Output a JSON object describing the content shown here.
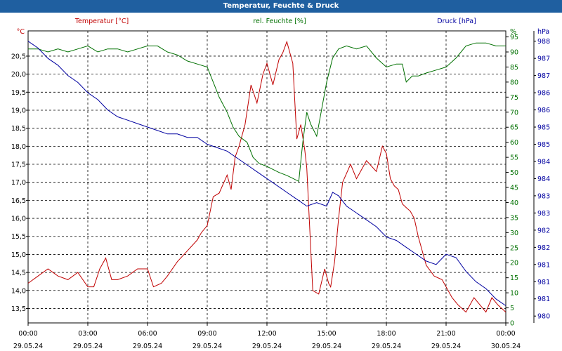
{
  "header": {
    "title": "Temperatur, Feuchte & Druck"
  },
  "chart_data": {
    "type": "line",
    "title": "Temperatur, Feuchte & Druck",
    "grid": true,
    "colors": {
      "temperature": "#c00000",
      "humidity": "#007000",
      "pressure": "#0000a0"
    },
    "x_ticks": [
      {
        "hours": 0,
        "time": "00:00",
        "date": "29.05.24"
      },
      {
        "hours": 3,
        "time": "03:00",
        "date": "29.05.24"
      },
      {
        "hours": 6,
        "time": "06:00",
        "date": "29.05.24"
      },
      {
        "hours": 9,
        "time": "09:00",
        "date": "29.05.24"
      },
      {
        "hours": 12,
        "time": "12:00",
        "date": "29.05.24"
      },
      {
        "hours": 15,
        "time": "15:00",
        "date": "29.05.24"
      },
      {
        "hours": 18,
        "time": "18:00",
        "date": "29.05.24"
      },
      {
        "hours": 21,
        "time": "21:00",
        "date": "29.05.24"
      },
      {
        "hours": 24,
        "time": "00:00",
        "date": "30.05.24"
      }
    ],
    "axes": {
      "temperature": {
        "label": "Temperatur [°C]",
        "unit": "°C",
        "range": [
          13.1,
          21.2
        ],
        "ticks": [
          "13,5",
          "14,0",
          "14,5",
          "15,0",
          "15,5",
          "16,0",
          "16,5",
          "17,0",
          "17,5",
          "18,0",
          "18,5",
          "19,0",
          "19,5",
          "20,0",
          "20,5"
        ],
        "tick_values": [
          13.5,
          14.0,
          14.5,
          15.0,
          15.5,
          16.0,
          16.5,
          17.0,
          17.5,
          18.0,
          18.5,
          19.0,
          19.5,
          20.0,
          20.5
        ]
      },
      "humidity": {
        "label": "rel. Feuchte [%]",
        "unit": "%",
        "range": [
          0,
          97
        ],
        "ticks": [
          "0",
          "5",
          "10",
          "15",
          "20",
          "25",
          "30",
          "35",
          "40",
          "45",
          "50",
          "55",
          "60",
          "65",
          "70",
          "75",
          "80",
          "85",
          "90",
          "95"
        ],
        "tick_values": [
          0,
          5,
          10,
          15,
          20,
          25,
          30,
          35,
          40,
          45,
          50,
          55,
          60,
          65,
          70,
          75,
          80,
          85,
          90,
          95
        ]
      },
      "pressure": {
        "label": "Druck [hPa]",
        "unit": "hPa",
        "range": [
          979.8,
          988.3
        ],
        "ticks": [
          "980",
          "981",
          "981",
          "981",
          "982",
          "982",
          "983",
          "983",
          "984",
          "984",
          "985",
          "985",
          "986",
          "986",
          "987",
          "987",
          "988",
          "988"
        ],
        "tick_values": [
          980.0,
          980.5,
          981.0,
          981.5,
          982.0,
          982.5,
          983.0,
          983.5,
          984.0,
          984.5,
          985.0,
          985.5,
          986.0,
          986.5,
          987.0,
          987.5,
          988.0,
          988.5
        ]
      }
    },
    "series": [
      {
        "name": "Temperatur [°C]",
        "key": "temperature",
        "x": [
          0,
          0.5,
          1,
          1.5,
          2,
          2.5,
          3,
          3.3,
          3.6,
          3.9,
          4.2,
          4.5,
          5.0,
          5.5,
          5.8,
          6.0,
          6.3,
          6.7,
          7.0,
          7.5,
          8.0,
          8.5,
          8.7,
          9.0,
          9.3,
          9.6,
          10.0,
          10.2,
          10.4,
          10.6,
          10.9,
          11.2,
          11.5,
          11.8,
          12.0,
          12.3,
          12.6,
          12.8,
          13.0,
          13.3,
          13.5,
          13.7,
          13.9,
          14.0,
          14.3,
          14.6,
          14.9,
          15.1,
          15.2,
          15.4,
          15.6,
          15.8,
          16.2,
          16.5,
          17.0,
          17.5,
          17.8,
          18.0,
          18.2,
          18.4,
          18.6,
          18.8,
          19.0,
          19.2,
          19.4,
          19.6,
          20.0,
          20.4,
          20.8,
          21.0,
          21.3,
          21.6,
          22.0,
          22.4,
          22.7,
          23.0,
          23.3,
          23.6,
          24.0
        ],
        "values": [
          14.2,
          14.4,
          14.6,
          14.4,
          14.3,
          14.5,
          14.1,
          14.1,
          14.6,
          14.9,
          14.3,
          14.3,
          14.4,
          14.6,
          14.6,
          14.6,
          14.1,
          14.2,
          14.4,
          14.8,
          15.1,
          15.4,
          15.6,
          15.8,
          16.6,
          16.7,
          17.2,
          16.8,
          17.7,
          18.0,
          18.6,
          19.7,
          19.2,
          20.0,
          20.3,
          19.7,
          20.4,
          20.6,
          20.9,
          20.3,
          18.2,
          18.6,
          17.9,
          17.4,
          14.0,
          13.9,
          14.6,
          14.2,
          14.1,
          14.8,
          16.0,
          17.0,
          17.5,
          17.1,
          17.6,
          17.3,
          18.0,
          17.8,
          17.1,
          16.9,
          16.8,
          16.4,
          16.3,
          16.2,
          16.0,
          15.5,
          14.7,
          14.4,
          14.3,
          14.1,
          13.8,
          13.6,
          13.4,
          13.8,
          13.6,
          13.4,
          13.8,
          13.6,
          13.4
        ]
      },
      {
        "name": "rel. Feuchte [%]",
        "key": "humidity",
        "x": [
          0,
          0.5,
          1,
          1.5,
          2,
          2.5,
          3,
          3.5,
          4,
          4.5,
          5,
          5.5,
          6,
          6.5,
          7,
          7.5,
          8,
          8.5,
          9,
          9.3,
          9.6,
          10,
          10.3,
          10.6,
          11,
          11.3,
          11.6,
          12,
          12.3,
          12.6,
          13,
          13.3,
          13.6,
          13.8,
          14,
          14.2,
          14.5,
          15,
          15.3,
          15.6,
          16,
          16.5,
          17,
          17.5,
          18,
          18.5,
          18.8,
          19,
          19.3,
          19.6,
          20,
          20.5,
          21,
          21.5,
          22,
          22.5,
          23,
          23.5,
          24
        ],
        "values": [
          91,
          91,
          90,
          91,
          90,
          91,
          92,
          90,
          91,
          91,
          90,
          91,
          92,
          92,
          90,
          89,
          87,
          86,
          85,
          80,
          75,
          70,
          65,
          62,
          60,
          55,
          53,
          52,
          51,
          50,
          49,
          48,
          47,
          60,
          70,
          66,
          62,
          80,
          88,
          91,
          92,
          91,
          92,
          88,
          85,
          86,
          86,
          80,
          82,
          82,
          83,
          84,
          85,
          88,
          92,
          93,
          93,
          92,
          92
        ]
      },
      {
        "name": "Druck [hPa]",
        "key": "pressure",
        "x": [
          0,
          0.5,
          1,
          1.5,
          2,
          2.5,
          3,
          3.5,
          4,
          4.5,
          5,
          5.5,
          6,
          6.5,
          7,
          7.5,
          8,
          8.5,
          9,
          9.5,
          10,
          10.5,
          11,
          11.5,
          12,
          12.5,
          13,
          13.5,
          14,
          14.5,
          15,
          15.3,
          15.6,
          16,
          16.5,
          17,
          17.5,
          18,
          18.5,
          19,
          19.5,
          20,
          20.5,
          21,
          21.5,
          22,
          22.5,
          23,
          23.5,
          24
        ],
        "values": [
          988.0,
          987.8,
          987.5,
          987.3,
          987.0,
          986.8,
          986.5,
          986.3,
          986.0,
          985.8,
          985.7,
          985.6,
          985.5,
          985.4,
          985.3,
          985.3,
          985.2,
          985.2,
          985.0,
          984.9,
          984.8,
          984.6,
          984.4,
          984.2,
          984.0,
          983.8,
          983.6,
          983.4,
          983.2,
          983.3,
          983.2,
          983.6,
          983.5,
          983.2,
          983.0,
          982.8,
          982.6,
          982.3,
          982.2,
          982.0,
          981.8,
          981.6,
          981.5,
          981.8,
          981.7,
          981.3,
          981.0,
          980.8,
          980.5,
          980.3
        ]
      }
    ]
  }
}
